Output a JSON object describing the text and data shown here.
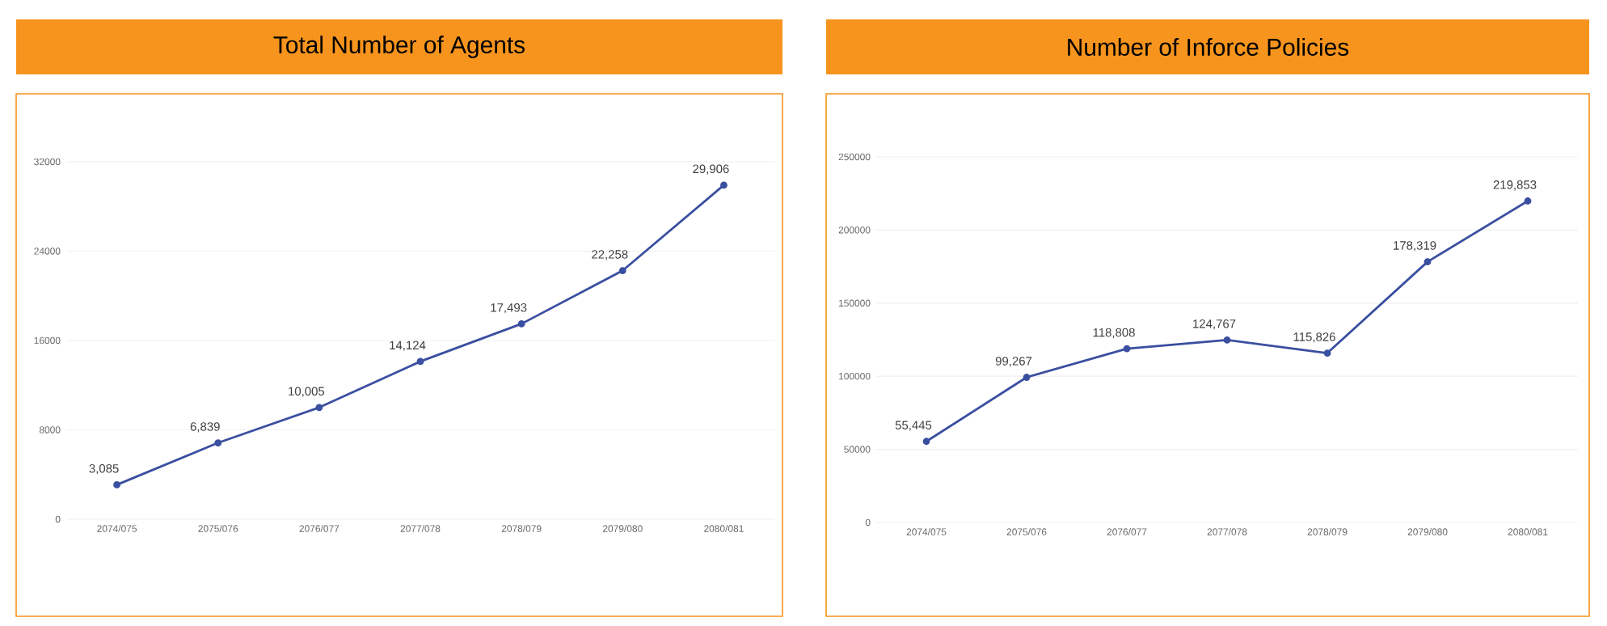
{
  "chart_data": [
    {
      "type": "line",
      "title": "Total Number of Agents",
      "categories": [
        "2074/075",
        "2075/076",
        "2076/077",
        "2077/078",
        "2078/079",
        "2079/080",
        "2080/081"
      ],
      "values": [
        3085,
        6839,
        10005,
        14124,
        17493,
        22258,
        29906
      ],
      "value_labels": [
        "3,085",
        "6,839",
        "10,005",
        "14,124",
        "17,493",
        "22,258",
        "29,906"
      ],
      "color": "#3a4fa0",
      "ylim": [
        0,
        32000
      ],
      "yticks": [
        0,
        8000,
        16000,
        24000,
        32000
      ],
      "grid": "y",
      "marker": "circle"
    },
    {
      "type": "line",
      "title": "Number of Inforce Policies",
      "categories": [
        "2074/075",
        "2075/076",
        "2076/077",
        "2077/078",
        "2078/079",
        "2079/080",
        "2080/081"
      ],
      "values": [
        55445,
        99267,
        118808,
        124767,
        115826,
        178319,
        219853
      ],
      "value_labels": [
        "55,445",
        "99,267",
        "118,808",
        "124,767",
        "115,826",
        "178,319",
        "219,853"
      ],
      "color": "#3a4fa0",
      "ylim": [
        0,
        250000
      ],
      "yticks": [
        0,
        50000,
        100000,
        150000,
        200000,
        250000
      ],
      "grid": "y",
      "marker": "circle"
    }
  ]
}
